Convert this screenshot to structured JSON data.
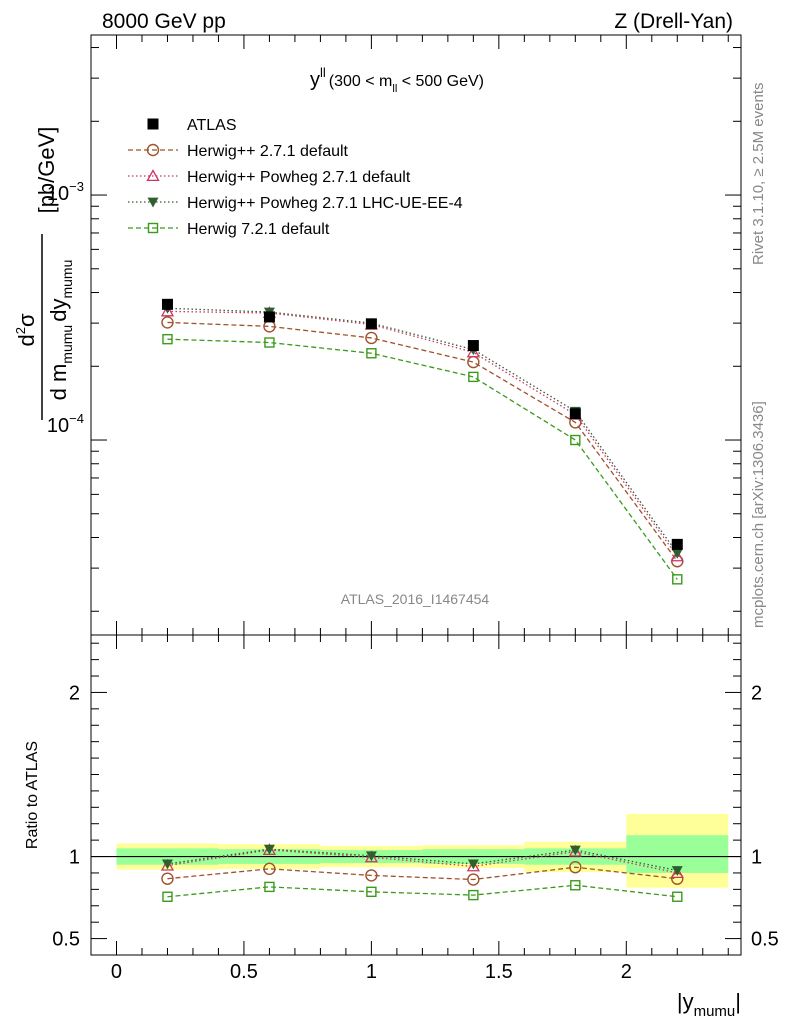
{
  "header": {
    "left": "8000 GeV pp",
    "right": "Z (Drell-Yan)"
  },
  "side_text": {
    "rivet": "Rivet 3.1.10, ≥ 2.5M events",
    "mcplots": "mcplots.cern.ch [arXiv:1306.3436]"
  },
  "watermark": "ATLAS_2016_I1467454",
  "colors": {
    "atlas": "#000000",
    "herwig_default": "#a0522d",
    "powheg_default": "#cc3366",
    "powheg_lhc": "#2f5f2f",
    "herwig721": "#3a9a1a",
    "band_inner": "#99ff99",
    "band_outer": "#ffff99"
  },
  "chart_data": [
    {
      "type": "scatter",
      "panel": "main",
      "title_text": {
        "main": "y",
        "sup": "ll",
        "range_pre": "(300 < m",
        "range_sub": "ll",
        "range_post": " < 500 GeV)"
      },
      "ylabel": {
        "num_main": "d",
        "num_sup": "2",
        "num_tail": "σ",
        "den_a": "d m",
        "den_a_sub": "mumu",
        "den_b": "dy",
        "den_b_sub": "mumu",
        "unit": "[pb/GeV]"
      },
      "yscale": "log",
      "ylim": [
        1.6e-05,
        0.0045
      ],
      "xlim": [
        -0.1,
        2.45
      ],
      "y_tick_labels": [
        {
          "value": 0.0001,
          "base": "10",
          "exp": "−4"
        },
        {
          "value": 0.001,
          "base": "10",
          "exp": "−3"
        }
      ],
      "x": [
        0.2,
        0.6,
        1.0,
        1.4,
        1.8,
        2.2
      ],
      "bin_edges": [
        0.0,
        0.4,
        0.8,
        1.2,
        1.6,
        2.0,
        2.4
      ],
      "legend_position": "top-left",
      "series": [
        {
          "key": "atlas",
          "name": "ATLAS",
          "marker": "square-filled",
          "line": "none",
          "values": [
            0.000358,
            0.000318,
            0.000298,
            0.000243,
            0.000128,
            3.75e-05
          ]
        },
        {
          "key": "herwig_default",
          "name": "Herwig++ 2.7.1 default",
          "marker": "circle-open",
          "line": "dashed",
          "values": [
            0.000302,
            0.000291,
            0.000261,
            0.000208,
            0.000118,
            3.2e-05
          ]
        },
        {
          "key": "powheg_default",
          "name": "Herwig++ Powheg 2.7.1 default",
          "marker": "triangle-up-open",
          "line": "dotted",
          "values": [
            0.000335,
            0.00033,
            0.000296,
            0.000228,
            0.000127,
            3.35e-05
          ]
        },
        {
          "key": "powheg_lhc",
          "name": "Herwig++ Powheg 2.7.1 LHC-UE-EE-4",
          "marker": "triangle-down-filled",
          "line": "dotted",
          "values": [
            0.000345,
            0.000333,
            0.0003,
            0.000234,
            0.000131,
            3.45e-05
          ]
        },
        {
          "key": "herwig721",
          "name": "Herwig 7.2.1 default",
          "marker": "square-open",
          "line": "dashed",
          "values": [
            0.000258,
            0.00025,
            0.000226,
            0.000181,
            0.0001,
            2.7e-05
          ]
        }
      ]
    },
    {
      "type": "scatter",
      "panel": "ratio",
      "ylabel": "Ratio to ATLAS",
      "xlabel": {
        "main": "|y",
        "sub": "mumu",
        "end": "|"
      },
      "ylim": [
        0.4,
        2.35
      ],
      "xlim": [
        -0.1,
        2.45
      ],
      "x_ticks": [
        0,
        0.5,
        1,
        1.5,
        2
      ],
      "x_tick_labels": [
        "0",
        "0.5",
        "1",
        "1.5",
        "2"
      ],
      "y_ticks": [
        0.5,
        1,
        2
      ],
      "y_tick_labels": [
        "0.5",
        "1",
        "2"
      ],
      "x": [
        0.2,
        0.6,
        1.0,
        1.4,
        1.8,
        2.2
      ],
      "bin_edges": [
        0.0,
        0.4,
        0.8,
        1.2,
        1.6,
        2.0,
        2.4
      ],
      "band_inner": [
        [
          0.95,
          1.05
        ],
        [
          0.955,
          1.045
        ],
        [
          0.96,
          1.04
        ],
        [
          0.955,
          1.045
        ],
        [
          0.95,
          1.05
        ],
        [
          0.9,
          1.13
        ]
      ],
      "band_outer": [
        [
          0.92,
          1.08
        ],
        [
          0.925,
          1.075
        ],
        [
          0.935,
          1.065
        ],
        [
          0.93,
          1.07
        ],
        [
          0.905,
          1.09
        ],
        [
          0.81,
          1.26
        ]
      ],
      "series": [
        {
          "key": "herwig_default",
          "values": [
            0.865,
            0.925,
            0.885,
            0.86,
            0.935,
            0.865
          ]
        },
        {
          "key": "powheg_default",
          "values": [
            0.945,
            1.04,
            0.995,
            0.94,
            1.03,
            0.9
          ]
        },
        {
          "key": "powheg_lhc",
          "values": [
            0.955,
            1.045,
            1.005,
            0.955,
            1.04,
            0.915
          ]
        },
        {
          "key": "herwig721",
          "values": [
            0.755,
            0.815,
            0.785,
            0.765,
            0.825,
            0.755
          ]
        }
      ]
    }
  ]
}
